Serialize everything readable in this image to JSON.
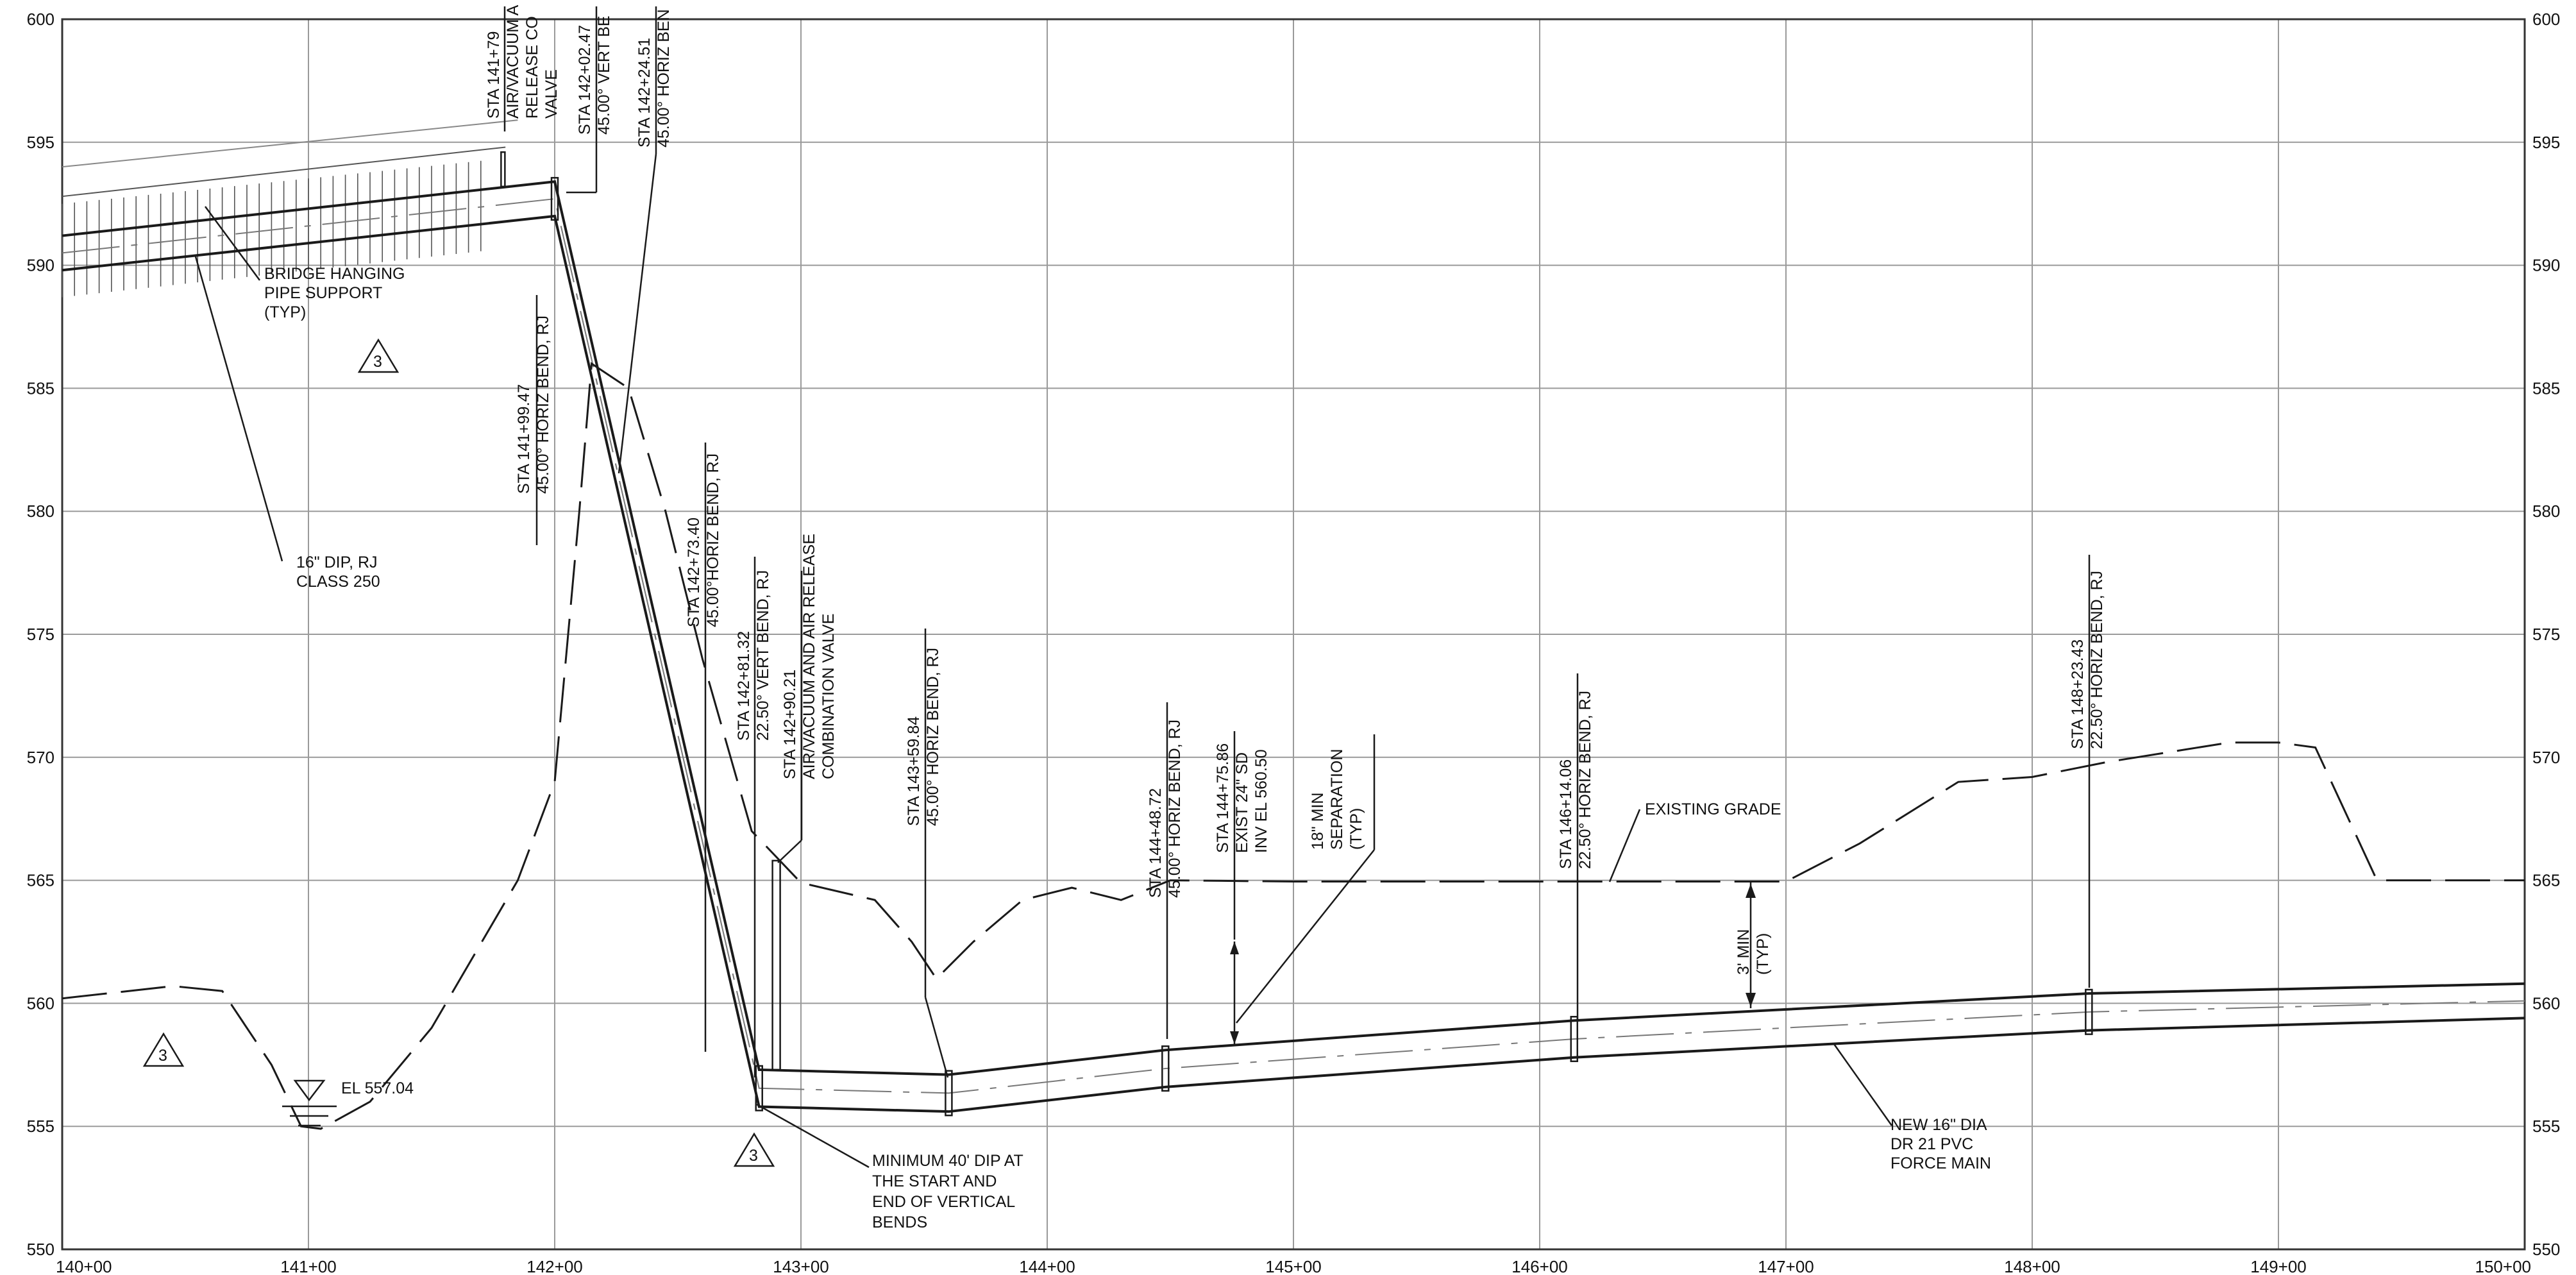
{
  "profile": {
    "x_axis": {
      "min_station": 140,
      "max_station": 150,
      "tick_labels": [
        "140+00",
        "141+00",
        "142+00",
        "143+00",
        "144+00",
        "145+00",
        "146+00",
        "147+00",
        "148+00",
        "149+00",
        "150+00"
      ]
    },
    "y_axis": {
      "min_elevation": 550,
      "max_elevation": 600,
      "tick_labels": [
        "600",
        "595",
        "590",
        "585",
        "580",
        "575",
        "570",
        "565",
        "560",
        "555",
        "550"
      ]
    },
    "grid": true,
    "line_color": "#1a1a1a",
    "grid_color": "#9a9a9a",
    "existing_grade_points": [
      [
        140.0,
        560.2
      ],
      [
        140.45,
        560.7
      ],
      [
        140.65,
        560.5
      ],
      [
        140.85,
        557.5
      ],
      [
        140.97,
        555.0
      ],
      [
        141.05,
        554.9
      ],
      [
        141.25,
        556.0
      ],
      [
        141.5,
        559.0
      ],
      [
        141.85,
        565.0
      ],
      [
        142.0,
        569.0
      ],
      [
        142.1,
        580.0
      ],
      [
        142.15,
        586.0
      ],
      [
        142.3,
        585.0
      ],
      [
        142.45,
        580.0
      ],
      [
        142.6,
        574.0
      ],
      [
        142.8,
        567.0
      ],
      [
        143.0,
        564.9
      ],
      [
        143.3,
        564.2
      ],
      [
        143.45,
        562.5
      ],
      [
        143.55,
        561.0
      ],
      [
        143.7,
        562.5
      ],
      [
        143.9,
        564.2
      ],
      [
        144.1,
        564.7
      ],
      [
        144.3,
        564.2
      ],
      [
        144.5,
        565.0
      ],
      [
        145.0,
        564.95
      ],
      [
        147.0,
        564.95
      ],
      [
        147.3,
        566.5
      ],
      [
        147.7,
        569.0
      ],
      [
        148.0,
        569.2
      ],
      [
        148.3,
        569.8
      ],
      [
        148.8,
        570.6
      ],
      [
        149.0,
        570.6
      ],
      [
        149.15,
        570.4
      ],
      [
        149.4,
        565.0
      ],
      [
        150.0,
        565.0
      ]
    ],
    "pipe_top_points": [
      [
        140.0,
        591.2
      ],
      [
        142.0,
        593.4
      ],
      [
        142.83,
        557.3
      ],
      [
        143.6,
        557.1
      ],
      [
        144.48,
        558.1
      ],
      [
        146.14,
        559.3
      ],
      [
        148.23,
        560.4
      ],
      [
        150.0,
        560.8
      ]
    ],
    "pipe_bottom_points": [
      [
        140.0,
        589.8
      ],
      [
        142.0,
        592.0
      ],
      [
        142.83,
        555.8
      ],
      [
        143.6,
        555.6
      ],
      [
        144.48,
        556.6
      ],
      [
        146.14,
        557.8
      ],
      [
        148.23,
        558.9
      ],
      [
        150.0,
        559.4
      ]
    ],
    "bridge_deck_top_points": [
      [
        140.0,
        594.0
      ],
      [
        141.85,
        595.9
      ]
    ],
    "fittings_stations": [
      142.0,
      142.83,
      143.6,
      144.48,
      146.14,
      148.23
    ],
    "annotations": {
      "sta_141_79": [
        "STA 141+79",
        "AIR/VACUUM A",
        "RELEASE CO",
        "VALVE"
      ],
      "sta_142_02": [
        "STA 142+02.47",
        "45.00° VERT BE"
      ],
      "sta_142_24": [
        "STA 142+24.51",
        "45.00° HORIZ BEN"
      ],
      "sta_141_99": [
        "STA 141+99.47",
        "45.00° HORIZ BEND, RJ"
      ],
      "sta_142_73": [
        "STA 142+73.40",
        "45.00°HORIZ BEND, RJ"
      ],
      "sta_142_81": [
        "STA 142+81.32",
        "22.50° VERT BEND, RJ"
      ],
      "sta_142_90": [
        "STA 142+90.21",
        "AIR/VACUUM AND AIR RELEASE",
        "COMBINATION VALVE"
      ],
      "sta_143_59": [
        "STA 143+59.84",
        "45.00° HORIZ BEND, RJ"
      ],
      "sta_144_48": [
        "STA 144+48.72",
        "45.00° HORIZ BEND, RJ"
      ],
      "sta_144_75": [
        "STA 144+75.86",
        "EXIST 24\" SD",
        "INV EL 560.50"
      ],
      "separation": [
        "18\" MIN",
        "SEPARATION",
        "(TYP)"
      ],
      "sta_146_14": [
        "STA 146+14.06",
        "22.50° HORIZ BEND, RJ"
      ],
      "sta_148_23": [
        "STA 148+23.43",
        "22.50° HORIZ BEND, RJ"
      ],
      "bridge_support": [
        "BRIDGE HANGING",
        "PIPE SUPPORT",
        "(TYP)"
      ],
      "dip_pipe": [
        "16\" DIP, RJ",
        "CLASS 250"
      ],
      "existing_grade": "EXISTING GRADE",
      "cover": [
        "3' MIN",
        "(TYP)"
      ],
      "water_surface": "EL 557.04",
      "minimum_dip": [
        "MINIMUM 40' DIP AT",
        "THE START AND",
        "END OF VERTICAL",
        "BENDS"
      ],
      "new_force_main": [
        "NEW 16\" DIA",
        "DR 21 PVC",
        "FORCE MAIN"
      ],
      "revision_marker": "3"
    }
  }
}
